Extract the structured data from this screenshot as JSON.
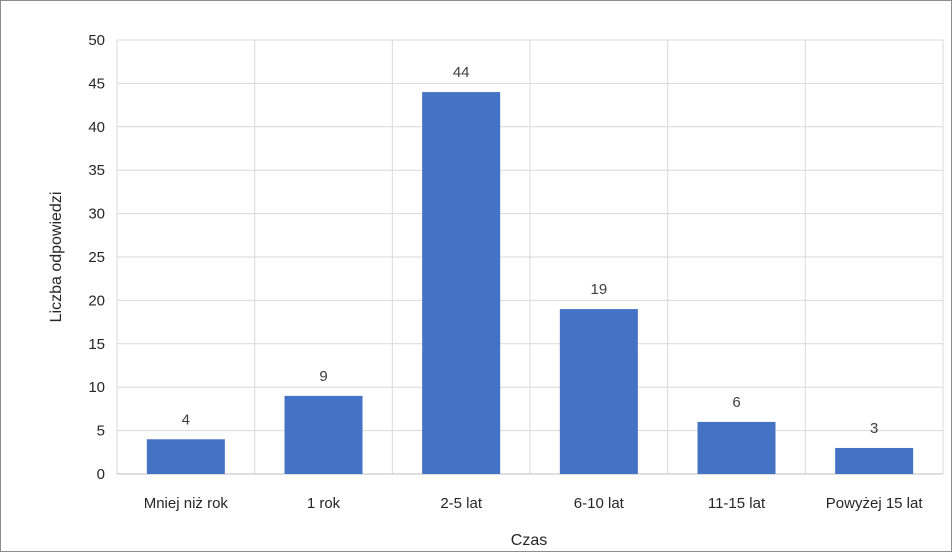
{
  "chart_data": {
    "type": "bar",
    "title": "",
    "xlabel": "Czas",
    "ylabel": "Liczba odpowiedzi",
    "categories": [
      "Mniej niż rok",
      "1 rok",
      "2-5 lat",
      "6-10 lat",
      "11-15 lat",
      "Powyżej 15 lat"
    ],
    "values": [
      4,
      9,
      44,
      19,
      6,
      3
    ],
    "ylim": [
      0,
      50
    ],
    "yticks": [
      0,
      5,
      10,
      15,
      20,
      25,
      30,
      35,
      40,
      45,
      50
    ],
    "grid": true,
    "data_labels": true,
    "bar_color": "#4472c4",
    "grid_color": "#d9d9d9"
  }
}
